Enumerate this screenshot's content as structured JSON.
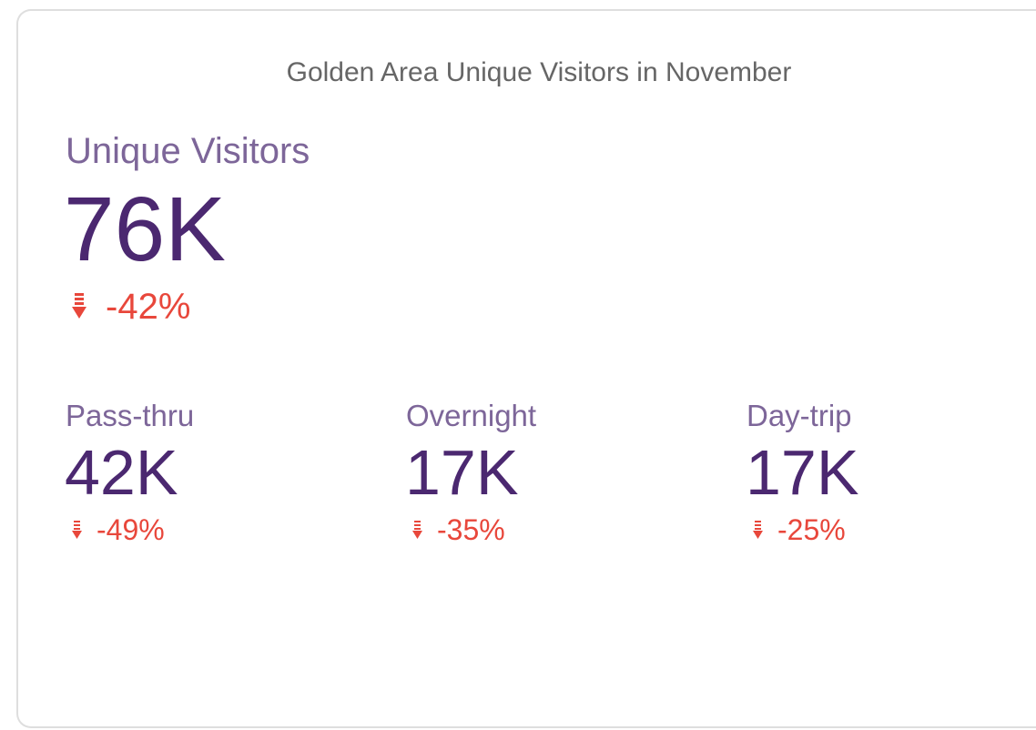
{
  "card": {
    "title": "Golden Area Unique Visitors in November",
    "main": {
      "label": "Unique Visitors",
      "value": "76K",
      "change": "-42%"
    },
    "items": [
      {
        "label": "Pass-thru",
        "value": "42K",
        "change": "-49%"
      },
      {
        "label": "Overnight",
        "value": "17K",
        "change": "-35%"
      },
      {
        "label": "Day-trip",
        "value": "17K",
        "change": "-25%"
      }
    ]
  }
}
